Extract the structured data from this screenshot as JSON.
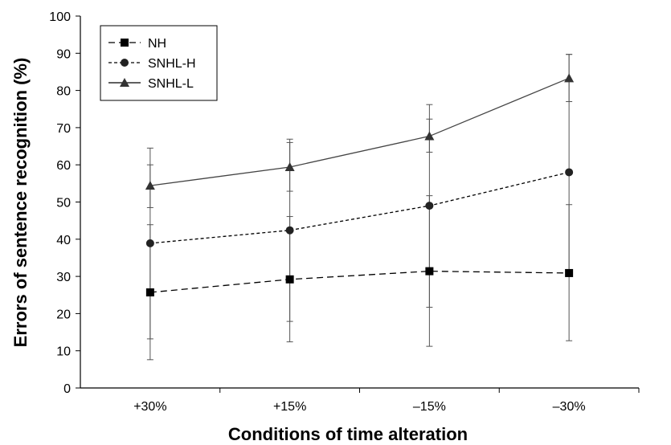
{
  "chart_data": {
    "type": "line",
    "title": "",
    "xlabel": "Conditions of time alteration",
    "ylabel": "Errors of sentence recognition (%)",
    "categories": [
      "+30%",
      "+15%",
      "–15%",
      "–30%"
    ],
    "ylim": [
      0,
      100
    ],
    "yticks": [
      0,
      10,
      20,
      30,
      40,
      50,
      60,
      70,
      80,
      90,
      100
    ],
    "grid": false,
    "legend_position": "top-left",
    "series": [
      {
        "name": "NH",
        "marker": "square",
        "line": "dashed",
        "values": [
          25.7,
          29.2,
          31.4,
          30.9
        ],
        "error_low": [
          7.6,
          12.4,
          11.2,
          12.7
        ],
        "error_high": [
          43.9,
          46.1,
          51.7,
          49.3
        ]
      },
      {
        "name": "SNHL-H",
        "marker": "circle",
        "line": "dotted",
        "values": [
          38.9,
          42.4,
          49.0,
          58.0
        ],
        "error_low": [
          13.2,
          17.9,
          21.7,
          31.5
        ],
        "error_high": [
          64.5,
          66.9,
          76.2,
          89.7
        ]
      },
      {
        "name": "SNHL-L",
        "marker": "triangle",
        "line": "solid",
        "values": [
          54.4,
          59.4,
          67.7,
          83.3
        ],
        "error_low": [
          48.5,
          52.9,
          63.4,
          77.0
        ],
        "error_high": [
          60.0,
          66.0,
          72.3,
          89.7
        ]
      }
    ]
  }
}
